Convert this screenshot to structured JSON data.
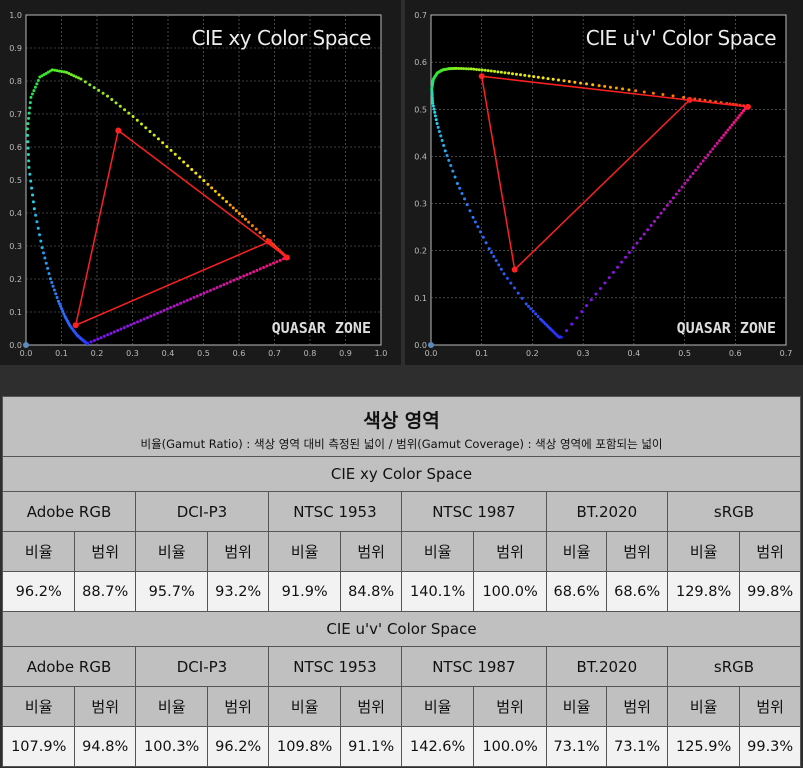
{
  "chart_data": [
    {
      "type": "scatter",
      "title": "CIE xy Color Space",
      "xlim": [
        0,
        1.0
      ],
      "ylim": [
        0,
        1.0
      ],
      "xticks": [
        "0.0",
        "0.1",
        "0.2",
        "0.3",
        "0.4",
        "0.5",
        "0.6",
        "0.7",
        "0.8",
        "0.9",
        "1.0"
      ],
      "yticks": [
        "0.0",
        "0.1",
        "0.2",
        "0.3",
        "0.4",
        "0.5",
        "0.6",
        "0.7",
        "0.8",
        "0.9",
        "1.0"
      ],
      "grid": true,
      "watermark": "QUASAR ZONE",
      "gamut": [
        [
          0.26,
          0.65
        ],
        [
          0.735,
          0.265
        ],
        [
          0.685,
          0.313
        ],
        [
          0.14,
          0.06
        ]
      ]
    },
    {
      "type": "scatter",
      "title": "CIE u'v' Color Space",
      "xlim": [
        0,
        0.7
      ],
      "ylim": [
        0,
        0.7
      ],
      "xticks": [
        "0.0",
        "0.1",
        "0.2",
        "0.3",
        "0.4",
        "0.5",
        "0.6",
        "0.7"
      ],
      "yticks": [
        "0.0",
        "0.1",
        "0.2",
        "0.3",
        "0.4",
        "0.5",
        "0.6",
        "0.7"
      ],
      "grid": true,
      "watermark": "QUASAR ZONE",
      "gamut": [
        [
          0.1,
          0.57
        ],
        [
          0.625,
          0.505
        ],
        [
          0.51,
          0.52
        ],
        [
          0.165,
          0.16
        ]
      ]
    }
  ],
  "locus_xy": [
    [
      0.1741,
      0.005
    ],
    [
      0.1714,
      0.0051
    ],
    [
      0.1644,
      0.0109
    ],
    [
      0.1566,
      0.0177
    ],
    [
      0.144,
      0.0297
    ],
    [
      0.1241,
      0.0578
    ],
    [
      0.1096,
      0.0868
    ],
    [
      0.0913,
      0.1327
    ],
    [
      0.0687,
      0.2007
    ],
    [
      0.0454,
      0.295
    ],
    [
      0.0235,
      0.4127
    ],
    [
      0.0082,
      0.5384
    ],
    [
      0.0039,
      0.6548
    ],
    [
      0.0139,
      0.7502
    ],
    [
      0.0389,
      0.812
    ],
    [
      0.0743,
      0.8338
    ],
    [
      0.1142,
      0.8262
    ],
    [
      0.1547,
      0.8059
    ],
    [
      0.2296,
      0.7543
    ],
    [
      0.3016,
      0.6923
    ],
    [
      0.3731,
      0.6245
    ],
    [
      0.4441,
      0.5547
    ],
    [
      0.5125,
      0.4866
    ],
    [
      0.5752,
      0.4242
    ],
    [
      0.627,
      0.3725
    ],
    [
      0.6915,
      0.3083
    ],
    [
      0.719,
      0.2809
    ],
    [
      0.7347,
      0.2653
    ]
  ],
  "colors": {
    "gamut": "#ff2020",
    "grid": "#777777"
  },
  "table": {
    "title": "색상 영역",
    "subtitle": "비율(Gamut Ratio) : 색상 영역 대비 측정된 넓이 / 범위(Gamut Coverage) : 색상 영역에 포함되는 넓이",
    "sections": [
      {
        "space": "CIE xy Color Space",
        "standards": [
          "Adobe RGB",
          "DCI-P3",
          "NTSC 1953",
          "NTSC 1987",
          "BT.2020",
          "sRGB"
        ],
        "sub": [
          "비율",
          "범위"
        ],
        "values": [
          "96.2%",
          "88.7%",
          "95.7%",
          "93.2%",
          "91.9%",
          "84.8%",
          "140.1%",
          "100.0%",
          "68.6%",
          "68.6%",
          "129.8%",
          "99.8%"
        ]
      },
      {
        "space": "CIE u'v' Color Space",
        "standards": [
          "Adobe RGB",
          "DCI-P3",
          "NTSC 1953",
          "NTSC 1987",
          "BT.2020",
          "sRGB"
        ],
        "sub": [
          "비율",
          "범위"
        ],
        "values": [
          "107.9%",
          "94.8%",
          "100.3%",
          "96.2%",
          "109.8%",
          "91.1%",
          "142.6%",
          "100.0%",
          "73.1%",
          "73.1%",
          "125.9%",
          "99.3%"
        ]
      }
    ]
  }
}
